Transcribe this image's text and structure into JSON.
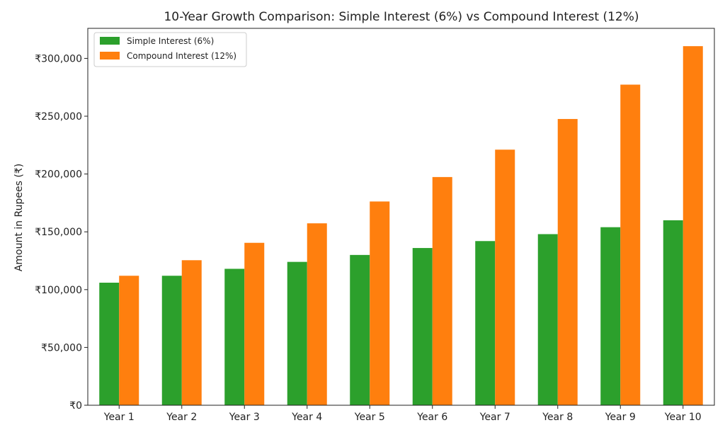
{
  "chart_data": {
    "type": "bar",
    "title": "10-Year Growth Comparison: Simple Interest (6%) vs Compound Interest (12%)",
    "xlabel": "",
    "ylabel": "Amount in Rupees (₹)",
    "categories": [
      "Year 1",
      "Year 2",
      "Year 3",
      "Year 4",
      "Year 5",
      "Year 6",
      "Year 7",
      "Year 8",
      "Year 9",
      "Year 10"
    ],
    "series": [
      {
        "name": "Simple Interest (6%)",
        "color": "#2ca02c",
        "values": [
          106000,
          112000,
          118000,
          124000,
          130000,
          136000,
          142000,
          148000,
          154000,
          160000
        ]
      },
      {
        "name": "Compound Interest (12%)",
        "color": "#ff7f0e",
        "values": [
          112000,
          125440,
          140493,
          157352,
          176234,
          197382,
          221068,
          247596,
          277308,
          310585
        ]
      }
    ],
    "ylim": [
      0,
      326000
    ],
    "yticks": [
      0,
      50000,
      100000,
      150000,
      200000,
      250000,
      300000
    ],
    "ytick_labels": [
      "₹0",
      "₹50,000",
      "₹100,000",
      "₹150,000",
      "₹200,000",
      "₹250,000",
      "₹300,000"
    ],
    "grid": false,
    "legend_position": "top-left"
  }
}
